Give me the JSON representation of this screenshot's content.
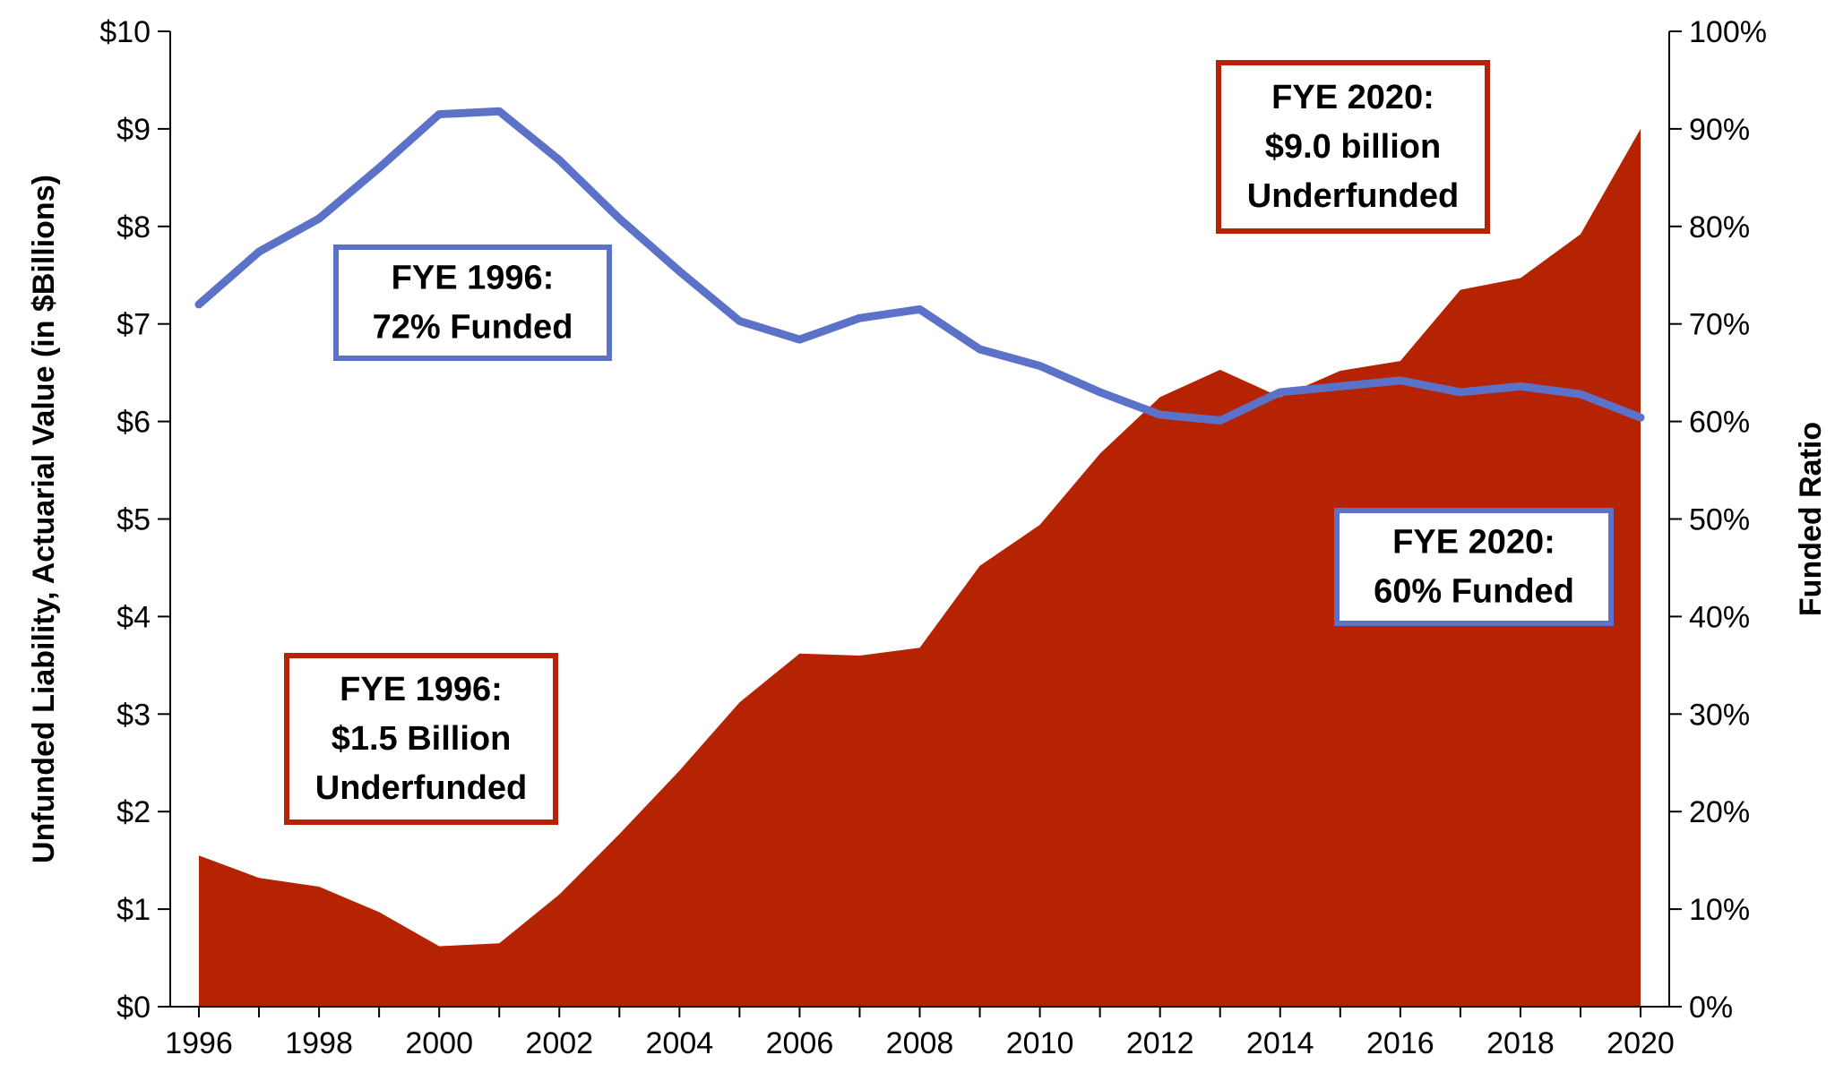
{
  "chart_data": {
    "type": "area",
    "x": [
      1996,
      1997,
      1998,
      1999,
      2000,
      2001,
      2002,
      2003,
      2004,
      2005,
      2006,
      2007,
      2008,
      2009,
      2010,
      2011,
      2012,
      2013,
      2014,
      2015,
      2016,
      2017,
      2018,
      2019,
      2020
    ],
    "x_ticks": [
      "1996",
      "1998",
      "2000",
      "2002",
      "2004",
      "2006",
      "2008",
      "2010",
      "2012",
      "2014",
      "2016",
      "2018",
      "2020"
    ],
    "series": [
      {
        "kind": "area",
        "axis": "left",
        "color": "#B52303",
        "values": [
          1.55,
          1.32,
          1.23,
          0.97,
          0.62,
          0.65,
          1.15,
          1.77,
          2.42,
          3.12,
          3.62,
          3.6,
          3.68,
          4.52,
          4.94,
          5.67,
          6.25,
          6.53,
          6.25,
          6.52,
          6.62,
          7.35,
          7.47,
          7.92,
          9.0
        ]
      },
      {
        "kind": "line",
        "axis": "right",
        "color": "#5B72C8",
        "values": [
          72.0,
          77.4,
          80.8,
          86.0,
          91.5,
          91.8,
          86.8,
          80.8,
          75.4,
          70.3,
          68.4,
          70.6,
          71.5,
          67.4,
          65.7,
          63.0,
          60.7,
          60.1,
          63.0,
          63.6,
          64.2,
          63.0,
          63.6,
          62.8,
          60.4
        ]
      }
    ],
    "y_left": {
      "label": "Unfunded Liability, Actuarial Value (in $Billions)",
      "range": [
        0,
        10
      ],
      "tick_labels": [
        "$0",
        "$1",
        "$2",
        "$3",
        "$4",
        "$5",
        "$6",
        "$7",
        "$8",
        "$9",
        "$10"
      ]
    },
    "y_right": {
      "label": "Funded Ratio",
      "range": [
        0,
        100
      ],
      "tick_labels": [
        "0%",
        "10%",
        "20%",
        "30%",
        "40%",
        "50%",
        "60%",
        "70%",
        "80%",
        "90%",
        "100%"
      ]
    },
    "grid": false,
    "annotations": [
      {
        "id": "fye1996-funded",
        "lines": [
          "FYE 1996:",
          "72% Funded"
        ],
        "color": "#5B72C8"
      },
      {
        "id": "fye2020-underfunded",
        "lines": [
          "FYE 2020:",
          "$9.0 billion",
          "Underfunded"
        ],
        "color": "#B52303"
      },
      {
        "id": "fye2020-funded",
        "lines": [
          "FYE 2020:",
          "60% Funded"
        ],
        "color": "#5B72C8"
      },
      {
        "id": "fye1996-underfunded",
        "lines": [
          "FYE 1996:",
          "$1.5 Billion",
          "Underfunded"
        ],
        "color": "#B52303"
      }
    ]
  }
}
